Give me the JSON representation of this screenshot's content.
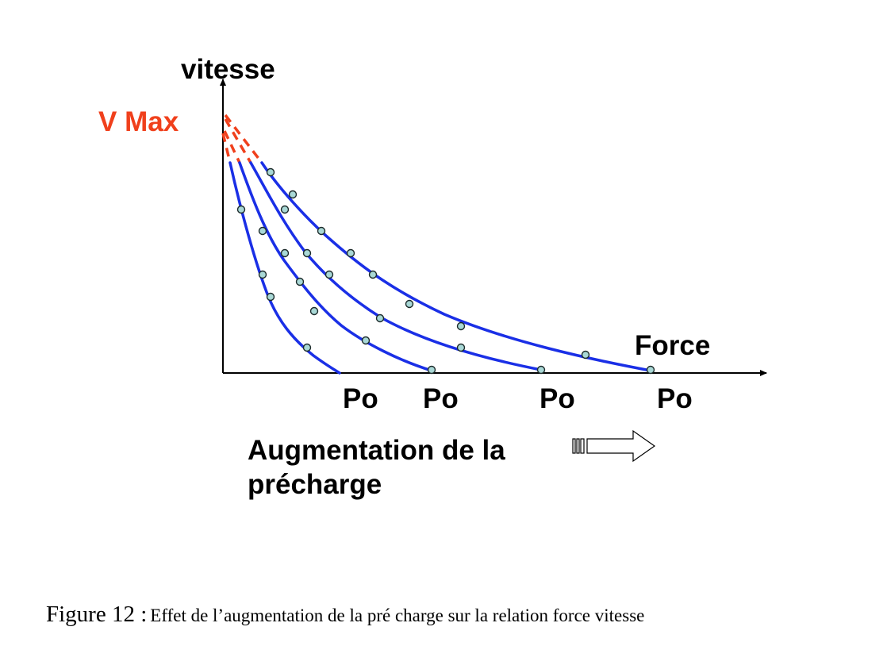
{
  "colors": {
    "axis": "#000000",
    "curve": "#1a2fe6",
    "vmax": "#f0401c",
    "dot_fill": "#a9d8d6",
    "dot_stroke": "#1c2a2a"
  },
  "diagram": {
    "y_axis_label": "vitesse",
    "x_axis_label": "Force",
    "vmax_label": "V Max",
    "po_labels": [
      "Po",
      "Po",
      "Po",
      "Po"
    ],
    "augmentation_line1": "Augmentation de la",
    "augmentation_line2": "précharge",
    "arrow_icon": "right-outline-arrow-icon"
  },
  "caption": {
    "number": "Figure 12 :",
    "text": "Effet de l’augmentation de la pré charge sur la relation force vitesse"
  }
}
